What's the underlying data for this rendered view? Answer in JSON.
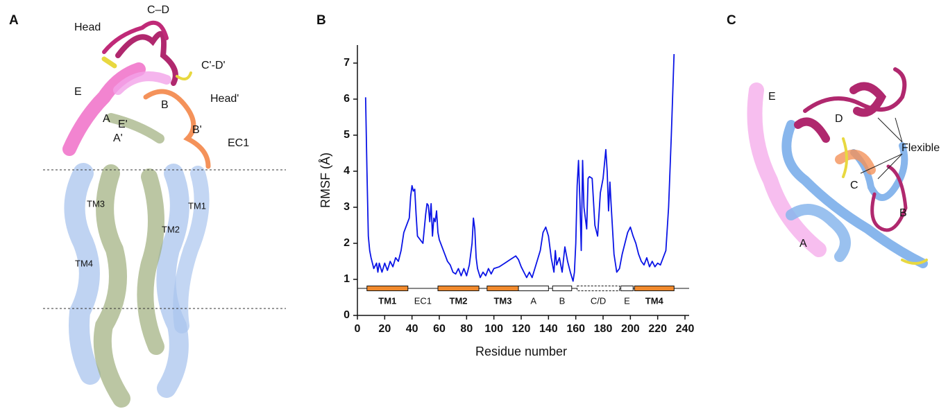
{
  "panel_a": {
    "label": "A",
    "annotations": [
      "Head",
      "C–D",
      "C'-D'",
      "Head'",
      "E",
      "B",
      "A",
      "E'",
      "B'",
      "A'",
      "EC1",
      "TM1",
      "TM3",
      "TM2",
      "TM4"
    ]
  },
  "chart_data": {
    "type": "line",
    "panel_label": "B",
    "ylabel": "RMSF (Å)",
    "xlabel": "Residue number",
    "color": "#0a14e6",
    "x": [
      6,
      7,
      8,
      9,
      10,
      12,
      14,
      15,
      16,
      18,
      20,
      22,
      24,
      26,
      28,
      30,
      32,
      34,
      36,
      38,
      39,
      40,
      41,
      42,
      43,
      44,
      46,
      48,
      50,
      51,
      52,
      53,
      54,
      55,
      56,
      57,
      58,
      59,
      60,
      62,
      64,
      66,
      68,
      70,
      72,
      74,
      76,
      78,
      80,
      82,
      84,
      85,
      86,
      87,
      88,
      90,
      92,
      94,
      96,
      98,
      100,
      104,
      108,
      112,
      116,
      118,
      120,
      122,
      124,
      126,
      128,
      130,
      132,
      134,
      136,
      138,
      140,
      142,
      144,
      145,
      146,
      148,
      150,
      152,
      154,
      156,
      158,
      159,
      160,
      161,
      162,
      163,
      164,
      165,
      166,
      168,
      169,
      170,
      172,
      174,
      176,
      178,
      180,
      182,
      183,
      184,
      185,
      186,
      188,
      190,
      192,
      194,
      196,
      198,
      200,
      202,
      204,
      206,
      208,
      210,
      212,
      214,
      216,
      218,
      220,
      222,
      224,
      226,
      228,
      230,
      232
    ],
    "values": [
      6.05,
      4.0,
      2.2,
      1.8,
      1.6,
      1.3,
      1.45,
      1.2,
      1.45,
      1.2,
      1.45,
      1.25,
      1.5,
      1.35,
      1.6,
      1.5,
      1.8,
      2.3,
      2.5,
      2.7,
      3.3,
      3.6,
      3.45,
      3.5,
      2.8,
      2.2,
      2.1,
      2.0,
      2.8,
      3.1,
      3.05,
      2.6,
      3.1,
      2.2,
      2.7,
      2.6,
      2.9,
      2.3,
      2.1,
      1.9,
      1.7,
      1.5,
      1.4,
      1.2,
      1.15,
      1.3,
      1.1,
      1.3,
      1.1,
      1.4,
      2.0,
      2.7,
      2.4,
      1.6,
      1.3,
      1.05,
      1.2,
      1.1,
      1.3,
      1.15,
      1.3,
      1.35,
      1.45,
      1.55,
      1.65,
      1.55,
      1.35,
      1.2,
      1.05,
      1.2,
      1.05,
      1.3,
      1.55,
      1.8,
      2.3,
      2.45,
      2.2,
      1.6,
      1.2,
      1.8,
      1.4,
      1.6,
      1.2,
      1.9,
      1.5,
      1.2,
      0.95,
      1.2,
      2.0,
      3.6,
      4.3,
      3.2,
      1.8,
      4.3,
      3.0,
      2.4,
      3.8,
      3.85,
      3.8,
      2.5,
      2.2,
      3.4,
      3.8,
      4.6,
      4.0,
      2.9,
      3.7,
      3.0,
      1.7,
      1.2,
      1.3,
      1.7,
      2.0,
      2.3,
      2.45,
      2.2,
      2.0,
      1.7,
      1.5,
      1.4,
      1.6,
      1.35,
      1.5,
      1.35,
      1.45,
      1.4,
      1.6,
      1.8,
      3.0,
      5.0,
      7.25
    ],
    "xlim": [
      0,
      240
    ],
    "xticks": [
      0,
      20,
      40,
      60,
      80,
      100,
      120,
      140,
      160,
      180,
      200,
      220,
      240
    ],
    "ylim": [
      0,
      7.5
    ],
    "yticks": [
      0,
      1,
      2,
      3,
      4,
      5,
      6,
      7
    ],
    "domain_track": 0.75,
    "domains": [
      {
        "label": "TM1",
        "start": 7,
        "end": 37,
        "style": "filled",
        "bold": true,
        "color": "#f0892d"
      },
      {
        "label": "EC1",
        "start": 37,
        "end": 59,
        "style": "line",
        "bold": false
      },
      {
        "label": "TM2",
        "start": 59,
        "end": 89,
        "style": "filled",
        "bold": true,
        "color": "#f0892d"
      },
      {
        "label": "TM3",
        "start": 95,
        "end": 118,
        "style": "filled",
        "bold": true,
        "color": "#f0892d"
      },
      {
        "label": "A",
        "start": 118,
        "end": 140,
        "style": "open",
        "bold": false
      },
      {
        "label": "B",
        "start": 143,
        "end": 157,
        "style": "open",
        "bold": false
      },
      {
        "label": "C/D",
        "start": 161,
        "end": 192,
        "style": "dashed",
        "bold": false
      },
      {
        "label": "E",
        "start": 193,
        "end": 202,
        "style": "open",
        "bold": false
      },
      {
        "label": "TM4",
        "start": 203,
        "end": 232,
        "style": "filled",
        "bold": true,
        "color": "#f0892d"
      }
    ]
  },
  "panel_c": {
    "label": "C",
    "annotations": [
      "E",
      "D",
      "Flexible",
      "C",
      "B",
      "A"
    ]
  }
}
